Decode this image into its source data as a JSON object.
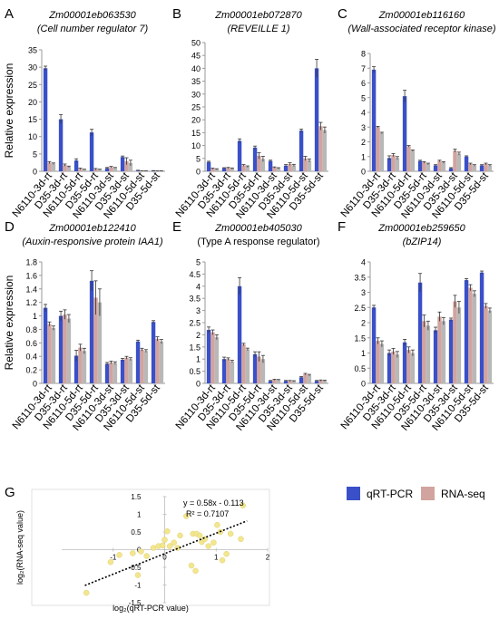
{
  "figure": {
    "y_axis_label": "Relative expression",
    "legend": [
      {
        "label": "qRT-PCR",
        "color": "#3a50c8"
      },
      {
        "label": "RNA-seq",
        "color": "#d2a49f"
      }
    ]
  },
  "chart_data": [
    {
      "panel": "A",
      "type": "bar",
      "title": "Zm00001eb063530",
      "subtitle": "(Cell number regulator 7)",
      "ylabel": "Relative expression",
      "categories": [
        "N6110-3d-rt",
        "D35-3d-rt",
        "N6110-5d-rt",
        "D35-5d-rt",
        "N6110-3d-st",
        "D35-3d-st",
        "N6110-5d-st",
        "D35-5d-st"
      ],
      "ylim": [
        0,
        35
      ],
      "yticks": [
        0,
        5,
        10,
        15,
        20,
        25,
        30,
        35
      ],
      "series": [
        {
          "name": "qRT-PCR",
          "values": [
            29.7,
            15.0,
            3.1,
            11.2,
            0.9,
            4.1,
            0.2,
            0.1
          ],
          "errors": [
            0.6,
            1.3,
            0.5,
            0.9,
            0.2,
            0.3,
            0.1,
            0.1
          ]
        },
        {
          "name": "RNA-seq",
          "values": [
            2.5,
            1.8,
            0.7,
            0.6,
            1.2,
            2.9,
            0.1,
            0.1
          ],
          "errors": [
            0.3,
            0.3,
            0.2,
            0.2,
            0.2,
            1.0,
            0.05,
            0.05
          ]
        },
        {
          "name": "",
          "values": [
            2.2,
            1.3,
            0.5,
            0.5,
            1.0,
            2.4,
            0.1,
            0.1
          ],
          "errors": [
            0.2,
            0.2,
            0.1,
            0.1,
            0.1,
            0.8,
            0.05,
            0.05
          ]
        }
      ]
    },
    {
      "panel": "B",
      "type": "bar",
      "title": "Zm00001eb072870",
      "subtitle": "(REVEILLE 1)",
      "categories": [
        "N6110-3d-rt",
        "D35-3d-rt",
        "N6110-5d-rt",
        "D35-5d-rt",
        "N6110-3d-st",
        "D35-3d-st",
        "N6110-5d-st",
        "D35-5d-st"
      ],
      "ylim": [
        0,
        50
      ],
      "yticks": [
        0,
        5,
        10,
        15,
        20,
        25,
        30,
        35,
        40,
        45,
        50
      ],
      "series": [
        {
          "name": "qRT-PCR",
          "values": [
            3.6,
            1.2,
            11.8,
            9.2,
            4.0,
            2.2,
            15.8,
            40.0
          ],
          "errors": [
            0.3,
            0.2,
            0.8,
            0.6,
            0.3,
            0.4,
            0.6,
            3.5
          ]
        },
        {
          "name": "RNA-seq",
          "values": [
            1.0,
            1.3,
            2.3,
            6.0,
            1.5,
            2.8,
            5.0,
            17.5
          ],
          "errors": [
            0.2,
            0.2,
            0.3,
            1.2,
            0.2,
            0.5,
            0.8,
            1.5
          ]
        },
        {
          "name": "",
          "values": [
            0.8,
            1.1,
            1.8,
            4.8,
            1.2,
            2.3,
            4.2,
            16.0
          ],
          "errors": [
            0.2,
            0.2,
            0.3,
            1.0,
            0.2,
            0.4,
            0.6,
            1.2
          ]
        }
      ]
    },
    {
      "panel": "C",
      "type": "bar",
      "title": "Zm00001eb116160",
      "subtitle": "(Wall-associated receptor kinase)",
      "categories": [
        "N6110-3d-rt",
        "D35-3d-rt",
        "N6110-5d-rt",
        "D35-5d-rt",
        "N6110-3d-st",
        "D35-3d-st",
        "N6110-5d-st",
        "D35-5d-st"
      ],
      "ylim": [
        0,
        8
      ],
      "yticks": [
        0,
        1,
        2,
        3,
        4,
        5,
        6,
        7,
        8
      ],
      "series": [
        {
          "name": "qRT-PCR",
          "values": [
            6.9,
            0.9,
            5.1,
            0.7,
            0.4,
            0.2,
            1.0,
            0.4
          ],
          "errors": [
            0.2,
            0.15,
            0.4,
            0.05,
            0.05,
            0.05,
            0.05,
            0.05
          ]
        },
        {
          "name": "RNA-seq",
          "values": [
            3.0,
            1.1,
            1.7,
            0.6,
            0.7,
            1.4,
            0.5,
            0.5
          ],
          "errors": [
            0.05,
            0.1,
            0.05,
            0.05,
            0.05,
            0.1,
            0.05,
            0.05
          ]
        },
        {
          "name": "",
          "values": [
            2.6,
            0.9,
            1.4,
            0.5,
            0.6,
            1.2,
            0.4,
            0.4
          ],
          "errors": [
            0.05,
            0.1,
            0.05,
            0.05,
            0.05,
            0.1,
            0.05,
            0.05
          ]
        }
      ]
    },
    {
      "panel": "D",
      "type": "bar",
      "title": "Zm00001eb122410",
      "subtitle": "(Auxin-responsive protein IAA1)",
      "ylabel": "Relative expression",
      "categories": [
        "N6110-3d-rt",
        "D35-3d-rt",
        "N6110-5d-rt",
        "D35-5d-rt",
        "N6110-3d-st",
        "D35-3d-st",
        "N6110-5d-st",
        "D35-5d-st"
      ],
      "ylim": [
        0,
        1.8
      ],
      "yticks": [
        0,
        0.2,
        0.4,
        0.6,
        0.8,
        1,
        1.2,
        1.4,
        1.6,
        1.8
      ],
      "series": [
        {
          "name": "qRT-PCR",
          "values": [
            1.12,
            1.0,
            0.41,
            1.52,
            0.29,
            0.35,
            0.62,
            0.91
          ],
          "errors": [
            0.05,
            0.07,
            0.08,
            0.15,
            0.02,
            0.02,
            0.02,
            0.02
          ]
        },
        {
          "name": "RNA-seq",
          "values": [
            0.88,
            1.02,
            0.53,
            1.27,
            0.31,
            0.38,
            0.5,
            0.66
          ],
          "errors": [
            0.03,
            0.07,
            0.05,
            0.25,
            0.02,
            0.02,
            0.02,
            0.03
          ]
        },
        {
          "name": "",
          "values": [
            0.82,
            0.96,
            0.48,
            1.2,
            0.3,
            0.36,
            0.48,
            0.62
          ],
          "errors": [
            0.03,
            0.06,
            0.04,
            0.2,
            0.02,
            0.02,
            0.02,
            0.03
          ]
        }
      ]
    },
    {
      "panel": "E",
      "type": "bar",
      "title": "Zm00001eb405030",
      "subtitle": "(Type A response regulator)",
      "categories": [
        "N6110-3d-rt",
        "D35-3d-rt",
        "N6110-5d-rt",
        "D35-5d-rt",
        "N6110-3d-st",
        "D35-3d-st",
        "N6110-5d-st",
        "D35-5d-st"
      ],
      "ylim": [
        0,
        5
      ],
      "yticks": [
        0,
        0.5,
        1,
        1.5,
        2,
        2.5,
        3,
        3.5,
        4,
        4.5,
        5
      ],
      "series": [
        {
          "name": "qRT-PCR",
          "values": [
            2.2,
            1.0,
            4.0,
            1.2,
            0.1,
            0.1,
            0.25,
            0.1
          ],
          "errors": [
            0.12,
            0.08,
            0.35,
            0.1,
            0.02,
            0.02,
            0.03,
            0.02
          ]
        },
        {
          "name": "RNA-seq",
          "values": [
            2.1,
            1.0,
            1.6,
            1.1,
            0.15,
            0.1,
            0.38,
            0.12
          ],
          "errors": [
            0.1,
            0.05,
            0.05,
            0.2,
            0.02,
            0.02,
            0.03,
            0.02
          ]
        },
        {
          "name": "",
          "values": [
            1.9,
            0.9,
            1.4,
            1.0,
            0.14,
            0.09,
            0.34,
            0.11
          ],
          "errors": [
            0.1,
            0.05,
            0.05,
            0.15,
            0.02,
            0.02,
            0.03,
            0.02
          ]
        }
      ]
    },
    {
      "panel": "F",
      "type": "bar",
      "title": "Zm00001eb259650",
      "subtitle": "(bZIP14)",
      "categories": [
        "N6110-3d-rt",
        "D35-3d-rt",
        "N6110-5d-rt",
        "D35-5d-rt",
        "N6110-3d-st",
        "D35-3d-st",
        "N6110-5d-st",
        "D35-5d-st"
      ],
      "ylim": [
        0,
        4
      ],
      "yticks": [
        0,
        0.5,
        1,
        1.5,
        2,
        2.5,
        3,
        3.5,
        4
      ],
      "series": [
        {
          "name": "qRT-PCR",
          "values": [
            2.5,
            1.0,
            1.35,
            3.32,
            1.75,
            2.1,
            3.4,
            3.65
          ],
          "errors": [
            0.07,
            0.1,
            0.1,
            0.3,
            0.1,
            0.05,
            0.05,
            0.05
          ]
        },
        {
          "name": "RNA-seq",
          "values": [
            1.4,
            1.05,
            1.1,
            2.05,
            2.2,
            2.7,
            3.15,
            2.55
          ],
          "errors": [
            0.1,
            0.1,
            0.1,
            0.2,
            0.15,
            0.2,
            0.1,
            0.08
          ]
        },
        {
          "name": "",
          "values": [
            1.3,
            0.95,
            1.0,
            1.9,
            2.05,
            2.5,
            2.95,
            2.4
          ],
          "errors": [
            0.1,
            0.1,
            0.1,
            0.15,
            0.12,
            0.2,
            0.1,
            0.08
          ]
        }
      ]
    },
    {
      "panel": "G",
      "type": "scatter",
      "xlabel": "log₂(qRT-PCR value)",
      "ylabel": "log₂(RNA-seq value)",
      "xlim": [
        -2,
        2
      ],
      "ylim": [
        -1.5,
        1.5
      ],
      "xticks": [
        -1,
        0,
        1,
        2
      ],
      "yticks": [
        -1.5,
        -1,
        -0.5,
        0,
        0.5,
        1,
        1.5
      ],
      "equation": "y = 0.58x - 0.113",
      "r2_label": "R² = 0.7107",
      "trendline": {
        "slope": 0.58,
        "intercept": -0.113
      },
      "x": [
        -1.52,
        -1.05,
        -0.88,
        -0.62,
        -0.52,
        -0.46,
        -0.35,
        -0.22,
        -0.12,
        -0.04,
        0.0,
        0.05,
        0.1,
        0.18,
        0.25,
        0.3,
        0.42,
        0.52,
        0.55,
        0.6,
        0.62,
        0.68,
        0.72,
        0.78,
        0.85,
        0.95,
        1.02,
        1.08,
        1.12,
        1.2,
        1.28,
        1.48,
        1.52
      ],
      "y": [
        -1.22,
        -0.35,
        -0.15,
        -0.1,
        -0.72,
        -0.05,
        -0.18,
        0.05,
        0.1,
        0.12,
        0.28,
        0.52,
        0.1,
        0.2,
        0.05,
        0.4,
        0.95,
        -0.45,
        0.45,
        -0.6,
        0.45,
        0.4,
        0.22,
        0.3,
        0.1,
        0.2,
        0.7,
        0.5,
        -0.3,
        -0.12,
        0.45,
        0.3,
        1.25
      ]
    }
  ]
}
